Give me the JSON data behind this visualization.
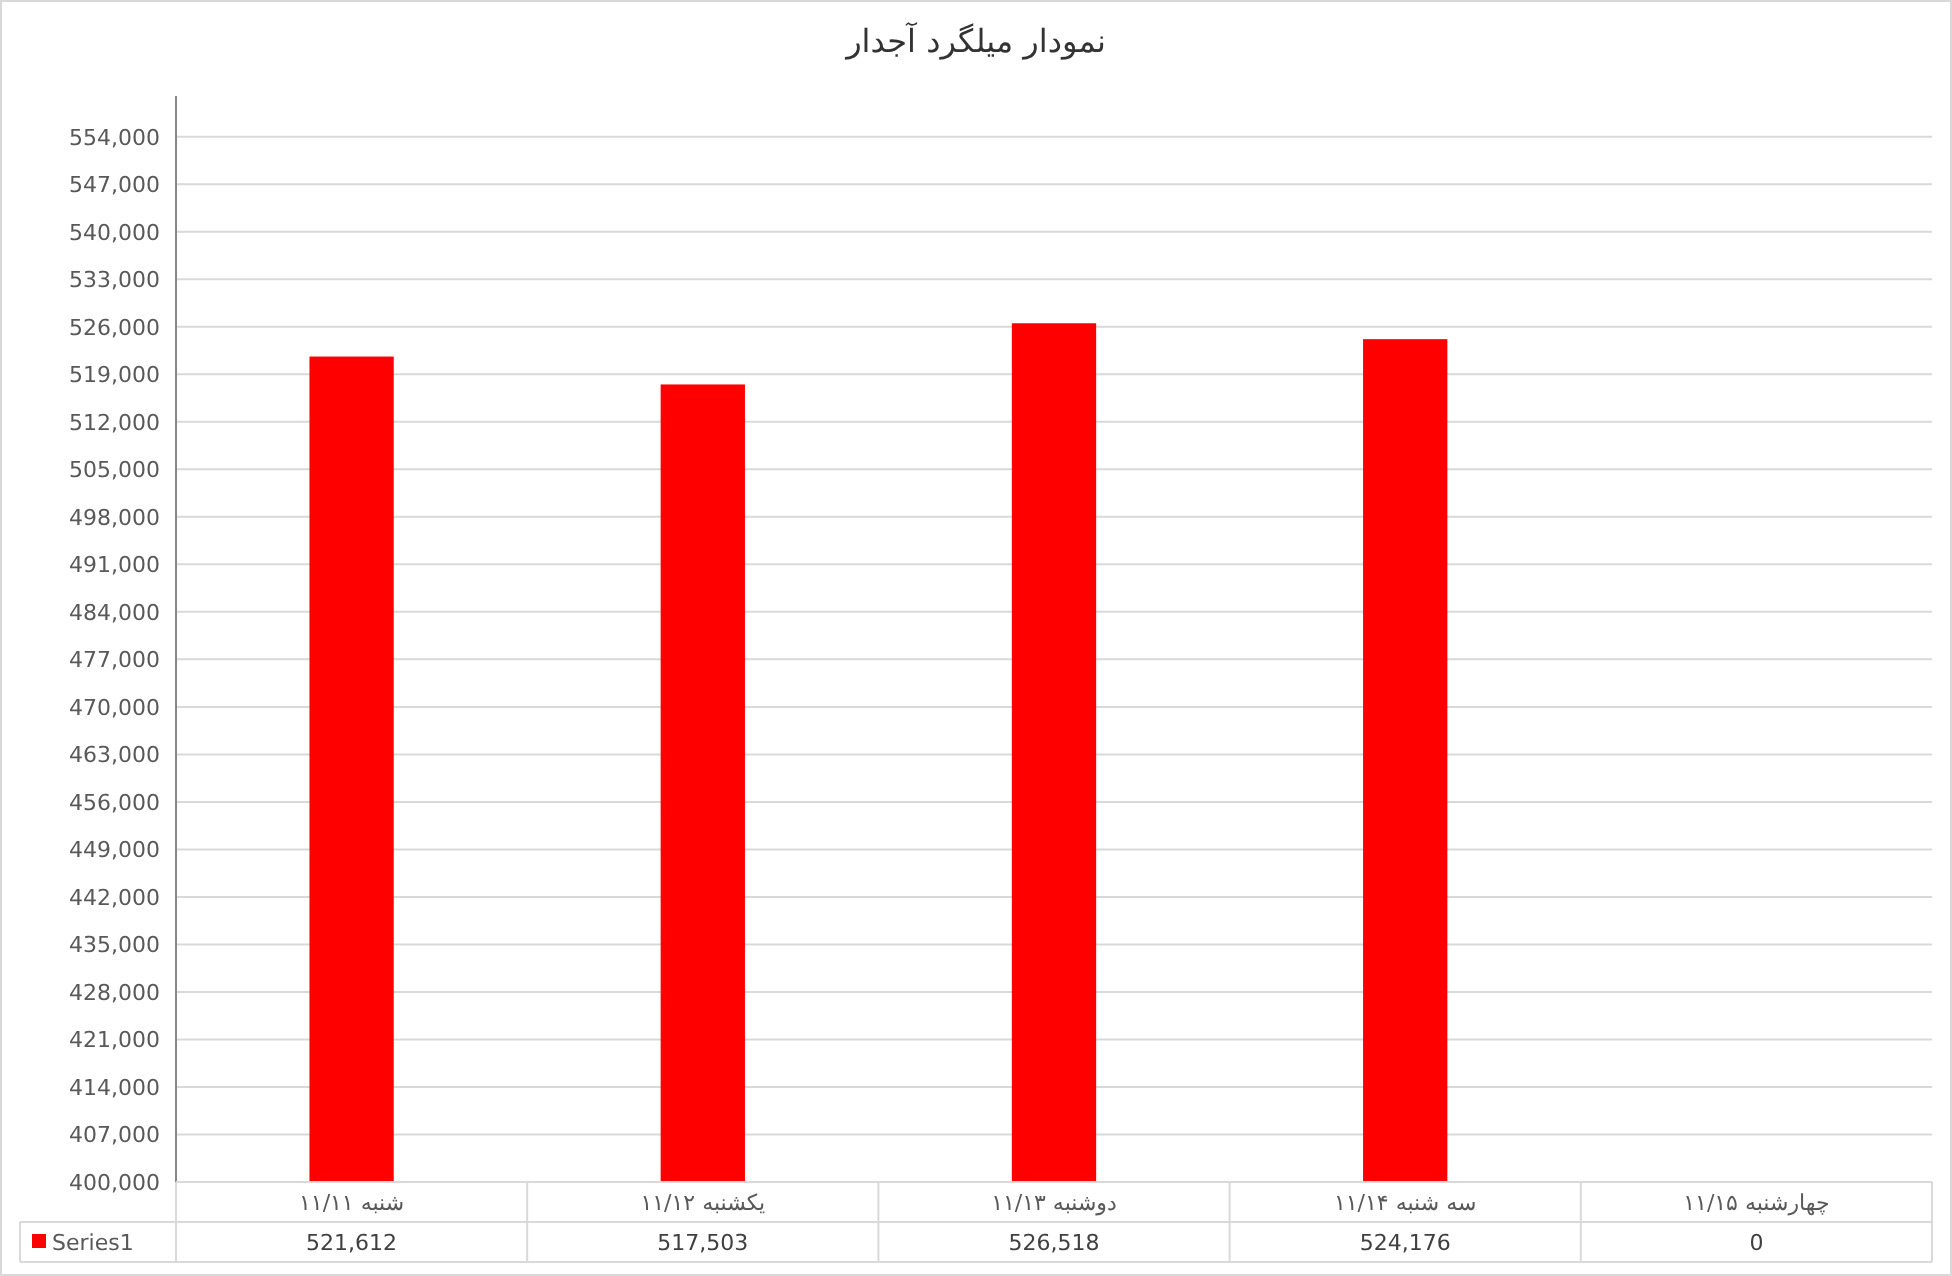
{
  "chart_data": {
    "type": "bar",
    "title": "نمودار میلگرد آجدار",
    "categories": [
      "شنبه ۱۱/۱۱",
      "یکشنبه ۱۱/۱۲",
      "دوشنبه ۱۱/۱۳",
      "سه شنبه ۱۱/۱۴",
      "چهارشنبه ۱۱/۱۵"
    ],
    "series": [
      {
        "name": "Series1",
        "color": "#ff0000",
        "values": [
          521612,
          517503,
          526518,
          524176,
          null
        ],
        "value_labels": [
          "521,612",
          "517,503",
          "526,518",
          "524,176",
          "0"
        ]
      }
    ],
    "ylim": [
      400000,
      560000
    ],
    "yticks": [
      {
        "value": 400000,
        "label": "400,000"
      },
      {
        "value": 407000,
        "label": "407,000"
      },
      {
        "value": 414000,
        "label": "414,000"
      },
      {
        "value": 421000,
        "label": "421,000"
      },
      {
        "value": 428000,
        "label": "428,000"
      },
      {
        "value": 435000,
        "label": "435,000"
      },
      {
        "value": 442000,
        "label": "442,000"
      },
      {
        "value": 449000,
        "label": "449,000"
      },
      {
        "value": 456000,
        "label": "456,000"
      },
      {
        "value": 463000,
        "label": "463,000"
      },
      {
        "value": 470000,
        "label": "470,000"
      },
      {
        "value": 477000,
        "label": "477,000"
      },
      {
        "value": 484000,
        "label": "484,000"
      },
      {
        "value": 491000,
        "label": "491,000"
      },
      {
        "value": 498000,
        "label": "498,000"
      },
      {
        "value": 505000,
        "label": "505,000"
      },
      {
        "value": 512000,
        "label": "512,000"
      },
      {
        "value": 519000,
        "label": "519,000"
      },
      {
        "value": 526000,
        "label": "526,000"
      },
      {
        "value": 533000,
        "label": "533,000"
      },
      {
        "value": 540000,
        "label": "540,000"
      },
      {
        "value": 547000,
        "label": "547,000"
      },
      {
        "value": 554000,
        "label": "554,000"
      }
    ],
    "grid": "y",
    "legend": "bottom"
  }
}
